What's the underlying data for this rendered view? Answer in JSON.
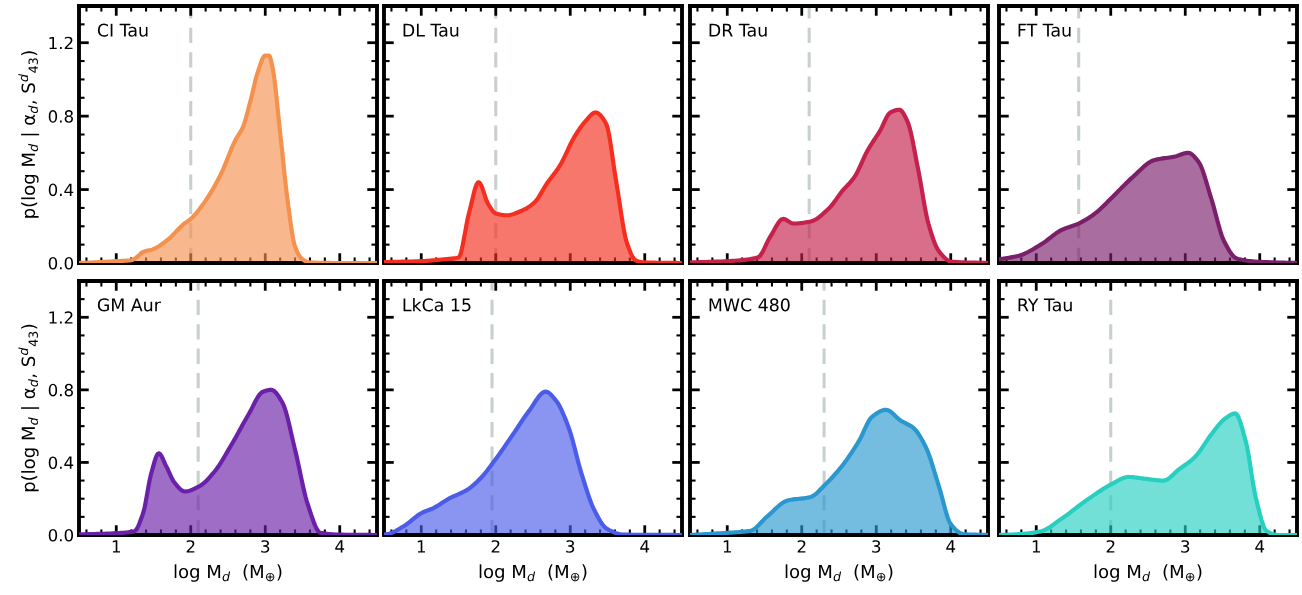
{
  "chart_data": [
    {
      "type": "area",
      "title": "CI Tau",
      "ylabel": "p(log M$_{d}$ | α$_{d}$, S$^{d}$$_{43}$)",
      "tick_labels": "y",
      "xlim": [
        0.5,
        4.5
      ],
      "ylim": [
        0,
        1.4
      ],
      "xticks": [
        1,
        2,
        3,
        4
      ],
      "yticks": [
        {
          "value": 0,
          "label": "0.0"
        },
        {
          "value": 0.4,
          "label": "0.4"
        },
        {
          "value": 0.8,
          "label": "0.8"
        },
        {
          "value": 1.2,
          "label": "1.2"
        }
      ],
      "ref_lines": [
        {
          "axis": "x",
          "value": 2.0,
          "color": "#c8cfcf",
          "line_style": "dashed"
        }
      ],
      "x": [
        0.5,
        0.8,
        1.0,
        1.2,
        1.3,
        1.35,
        1.5,
        1.7,
        1.9,
        2.0,
        2.2,
        2.4,
        2.6,
        2.7,
        2.8,
        2.9,
        3.0,
        3.05,
        3.1,
        3.2,
        3.3,
        3.4,
        3.5,
        3.6,
        4.0,
        4.5
      ],
      "series": [
        {
          "color": "#f5914e",
          "values": [
            0,
            0.005,
            0.01,
            0.015,
            0.04,
            0.058,
            0.076,
            0.13,
            0.21,
            0.24,
            0.34,
            0.48,
            0.67,
            0.74,
            0.88,
            1.04,
            1.13,
            1.13,
            1.06,
            0.71,
            0.34,
            0.09,
            0.02,
            0.003,
            0,
            0
          ]
        }
      ]
    },
    {
      "type": "area",
      "title": "DL Tau",
      "tick_labels": false,
      "xlim": [
        0.5,
        4.5
      ],
      "ylim": [
        0,
        1.4
      ],
      "xticks": [
        1,
        2,
        3,
        4
      ],
      "yticks": [
        0,
        0.4,
        0.8,
        1.2
      ],
      "ref_lines": [
        {
          "axis": "x",
          "value": 2.0,
          "color": "#c8cfcf",
          "line_style": "dashed"
        }
      ],
      "x": [
        0.5,
        1.0,
        1.3,
        1.5,
        1.64,
        1.77,
        1.9,
        2.0,
        2.15,
        2.35,
        2.52,
        2.69,
        2.86,
        3.06,
        3.2,
        3.34,
        3.48,
        3.62,
        3.76,
        3.88,
        4.0,
        4.5
      ],
      "series": [
        {
          "color": "#f52e1f",
          "values": [
            0.005,
            0.01,
            0.02,
            0.03,
            0.27,
            0.44,
            0.32,
            0.27,
            0.26,
            0.285,
            0.33,
            0.435,
            0.53,
            0.69,
            0.77,
            0.82,
            0.76,
            0.435,
            0.11,
            0.014,
            0.003,
            0
          ]
        }
      ]
    },
    {
      "type": "area",
      "title": "DR Tau",
      "tick_labels": false,
      "xlim": [
        0.5,
        4.5
      ],
      "ylim": [
        0,
        1.4
      ],
      "xticks": [
        1,
        2,
        3,
        4
      ],
      "yticks": [
        0,
        0.4,
        0.8,
        1.2
      ],
      "ref_lines": [
        {
          "axis": "x",
          "value": 2.1,
          "color": "#c8cfcf",
          "line_style": "dashed"
        }
      ],
      "x": [
        0.5,
        1.0,
        1.41,
        1.58,
        1.75,
        1.89,
        2.12,
        2.37,
        2.54,
        2.71,
        2.88,
        3.05,
        3.19,
        3.31,
        3.42,
        3.56,
        3.7,
        3.84,
        4.01,
        4.5
      ],
      "series": [
        {
          "color": "#c4214c",
          "values": [
            0.003,
            0.01,
            0.03,
            0.145,
            0.24,
            0.215,
            0.226,
            0.3,
            0.39,
            0.47,
            0.61,
            0.72,
            0.82,
            0.835,
            0.77,
            0.515,
            0.215,
            0.065,
            0.007,
            0
          ]
        }
      ]
    },
    {
      "type": "area",
      "title": "FT Tau",
      "tick_labels": false,
      "xlim": [
        0.5,
        4.5
      ],
      "ylim": [
        0,
        1.4
      ],
      "xticks": [
        1,
        2,
        3,
        4
      ],
      "yticks": [
        0,
        0.4,
        0.8,
        1.2
      ],
      "ref_lines": [
        {
          "axis": "x",
          "value": 1.57,
          "color": "#c8cfcf",
          "line_style": "dashed"
        }
      ],
      "x": [
        0.5,
        0.77,
        1.06,
        1.34,
        1.57,
        1.79,
        2.0,
        2.3,
        2.58,
        2.86,
        3.04,
        3.18,
        3.35,
        3.52,
        3.69,
        3.97,
        4.5
      ],
      "series": [
        {
          "color": "#7b1f6b",
          "values": [
            0.02,
            0.04,
            0.1,
            0.18,
            0.215,
            0.27,
            0.35,
            0.47,
            0.56,
            0.58,
            0.6,
            0.55,
            0.35,
            0.12,
            0.025,
            0.007,
            0
          ]
        }
      ]
    },
    {
      "type": "area",
      "title": "GM Aur",
      "xlabel": "log M$_{d}$  (M$_{⊕}$)",
      "ylabel": "p(log M$_{d}$ | α$_{d}$, S$^{d}$$_{43}$)",
      "xlim": [
        0.5,
        4.5
      ],
      "ylim": [
        0,
        1.4
      ],
      "xticks": [
        1,
        2,
        3,
        4
      ],
      "yticks": [
        {
          "value": 0,
          "label": "0.0"
        },
        {
          "value": 0.4,
          "label": "0.4"
        },
        {
          "value": 0.8,
          "label": "0.8"
        },
        {
          "value": 1.2,
          "label": "1.2"
        }
      ],
      "ref_lines": [
        {
          "axis": "x",
          "value": 2.1,
          "color": "#c8cfcf",
          "line_style": "dashed"
        }
      ],
      "x": [
        0.5,
        1.0,
        1.24,
        1.36,
        1.47,
        1.57,
        1.67,
        1.78,
        1.92,
        2.12,
        2.32,
        2.55,
        2.77,
        2.97,
        3.08,
        3.23,
        3.4,
        3.57,
        3.74,
        4.0,
        4.5
      ],
      "series": [
        {
          "color": "#6a20a8",
          "values": [
            0.003,
            0.01,
            0.02,
            0.12,
            0.34,
            0.45,
            0.38,
            0.29,
            0.24,
            0.27,
            0.35,
            0.5,
            0.66,
            0.79,
            0.8,
            0.73,
            0.47,
            0.17,
            0.012,
            0.002,
            0
          ]
        }
      ]
    },
    {
      "type": "area",
      "title": "LkCa 15",
      "xlabel": "log M$_{d}$  (M$_{⊕}$)",
      "tick_labels": "x",
      "xlim": [
        0.5,
        4.5
      ],
      "ylim": [
        0,
        1.4
      ],
      "xticks": [
        1,
        2,
        3,
        4
      ],
      "yticks": [
        0,
        0.4,
        0.8,
        1.2
      ],
      "ref_lines": [
        {
          "axis": "x",
          "value": 1.95,
          "color": "#c8cfcf",
          "line_style": "dashed"
        }
      ],
      "x": [
        0.5,
        0.55,
        0.77,
        1.0,
        1.17,
        1.37,
        1.62,
        1.79,
        2.02,
        2.24,
        2.44,
        2.67,
        2.81,
        2.98,
        3.15,
        3.32,
        3.49,
        3.72,
        4.5
      ],
      "series": [
        {
          "color": "#4a5ce8",
          "values": [
            0.002,
            0.005,
            0.05,
            0.12,
            0.15,
            0.2,
            0.25,
            0.31,
            0.43,
            0.56,
            0.68,
            0.79,
            0.74,
            0.59,
            0.34,
            0.14,
            0.035,
            0.002,
            0
          ]
        }
      ]
    },
    {
      "type": "area",
      "title": "MWC 480",
      "xlabel": "log M$_{d}$  (M$_{⊕}$)",
      "tick_labels": "x",
      "xlim": [
        0.5,
        4.5
      ],
      "ylim": [
        0,
        1.4
      ],
      "xticks": [
        1,
        2,
        3,
        4
      ],
      "yticks": [
        0,
        0.4,
        0.8,
        1.2
      ],
      "ref_lines": [
        {
          "axis": "x",
          "value": 2.3,
          "color": "#c8cfcf",
          "line_style": "dashed"
        }
      ],
      "x": [
        0.5,
        1.0,
        1.31,
        1.53,
        1.81,
        2.12,
        2.32,
        2.54,
        2.77,
        2.94,
        3.13,
        3.33,
        3.5,
        3.67,
        3.84,
        4.0,
        4.17,
        4.5
      ],
      "series": [
        {
          "color": "#2a98cf",
          "values": [
            0,
            0.012,
            0.023,
            0.1,
            0.19,
            0.21,
            0.28,
            0.38,
            0.52,
            0.65,
            0.69,
            0.63,
            0.59,
            0.48,
            0.27,
            0.06,
            0.005,
            0
          ]
        }
      ]
    },
    {
      "type": "area",
      "title": "RY Tau",
      "xlabel": "log M$_{d}$  (M$_{⊕}$)",
      "tick_labels": "x",
      "xlim": [
        0.5,
        4.5
      ],
      "ylim": [
        0,
        1.4
      ],
      "xticks": [
        1,
        2,
        3,
        4
      ],
      "yticks": [
        0,
        0.4,
        0.8,
        1.2
      ],
      "ref_lines": [
        {
          "axis": "x",
          "value": 2.0,
          "color": "#c8cfcf",
          "line_style": "dashed"
        }
      ],
      "x": [
        0.5,
        0.78,
        1.06,
        1.34,
        1.67,
        2.01,
        2.24,
        2.46,
        2.71,
        2.91,
        3.13,
        3.36,
        3.53,
        3.67,
        3.81,
        3.95,
        4.09,
        4.26,
        4.5
      ],
      "series": [
        {
          "color": "#26cfc0",
          "values": [
            0,
            0.005,
            0.02,
            0.09,
            0.19,
            0.28,
            0.32,
            0.31,
            0.3,
            0.36,
            0.43,
            0.56,
            0.64,
            0.67,
            0.52,
            0.2,
            0.023,
            0,
            0
          ]
        }
      ]
    }
  ]
}
